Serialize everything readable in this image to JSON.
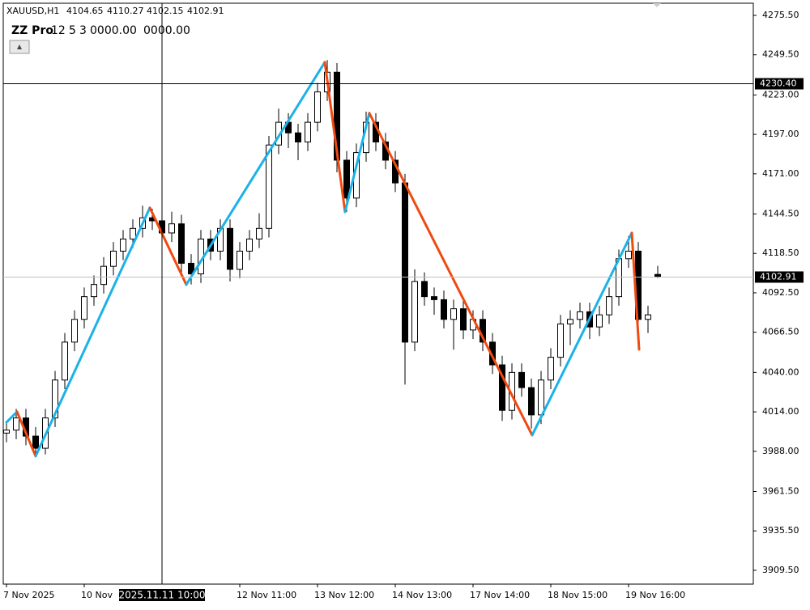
{
  "chart_data": {
    "type": "candlestick",
    "symbol": "XAUUSD,H1",
    "indicator": {
      "name": "ZZ Pro",
      "params": [
        12,
        5,
        3
      ],
      "up_label": "0000.00",
      "down_label": "0000.00"
    },
    "xlim": [
      -1,
      230.5
    ],
    "ylim": [
      3900.4,
      4283.5
    ],
    "yticks": [
      {
        "value": 4275.5,
        "label": "4275.50"
      },
      {
        "value": 4249.5,
        "label": "4249.50"
      },
      {
        "value": 4223,
        "label": "4223.00"
      },
      {
        "value": 4197,
        "label": "4197.00"
      },
      {
        "value": 4171,
        "label": "4171.00"
      },
      {
        "value": 4144.5,
        "label": "4144.50"
      },
      {
        "value": 4118.5,
        "label": "4118.50"
      },
      {
        "value": 4092.5,
        "label": "4092.50"
      },
      {
        "value": 4066.5,
        "label": "4066.50"
      },
      {
        "value": 4040,
        "label": "4040.00"
      },
      {
        "value": 4014,
        "label": "4014.00"
      },
      {
        "value": 3988,
        "label": "3988.00"
      },
      {
        "value": 3961.5,
        "label": "3961.50"
      },
      {
        "value": 3935.5,
        "label": "3935.50"
      },
      {
        "value": 3909.5,
        "label": "3909.50"
      }
    ],
    "xticks": [
      {
        "value": 0,
        "label": "7 Nov 2025"
      },
      {
        "value": 24,
        "label": "10 Nov"
      },
      {
        "value": 72,
        "label": "12 Nov 11:00"
      },
      {
        "value": 96,
        "label": "13 Nov 12:00"
      },
      {
        "value": 120,
        "label": "14 Nov 13:00"
      },
      {
        "value": 144,
        "label": "17 Nov 14:00"
      },
      {
        "value": 168,
        "label": "18 Nov 15:00"
      },
      {
        "value": 192,
        "label": "19 Nov 16:00"
      }
    ],
    "crosshair": {
      "x": 48,
      "time_label": "2025.11.11 10:00",
      "price": {
        "value": 4230.4,
        "label": "4230.40"
      }
    },
    "up_candle_color": "#ffffff",
    "down_candle_color": "#000000",
    "candles": {
      "x": [
        0,
        3,
        6,
        9,
        12,
        15,
        18,
        21,
        24,
        27,
        30,
        33,
        36,
        39,
        42,
        45,
        48,
        51,
        54,
        57,
        60,
        63,
        66,
        69,
        72,
        75,
        78,
        81,
        84,
        87,
        90,
        93,
        96,
        99,
        102,
        105,
        108,
        111,
        114,
        117,
        120,
        123,
        126,
        129,
        132,
        135,
        138,
        141,
        144,
        147,
        150,
        153,
        156,
        159,
        162,
        165,
        168,
        171,
        174,
        177,
        180,
        183,
        186,
        189,
        192,
        195,
        198,
        201
      ],
      "open": [
        4000,
        4002,
        4010,
        3998,
        3990,
        4010,
        4035,
        4060,
        4075,
        4090,
        4098,
        4110,
        4120,
        4128,
        4135,
        4142,
        4140,
        4132,
        4138,
        4112,
        4105,
        4128,
        4120,
        4135,
        4108,
        4120,
        4128,
        4135,
        4190,
        4205,
        4198,
        4192,
        4205,
        4225,
        4238,
        4180,
        4155,
        4185,
        4205,
        4192,
        4180,
        4165,
        4060,
        4100,
        4090,
        4088,
        4075,
        4082,
        4068,
        4075,
        4060,
        4045,
        4015,
        4040,
        4030,
        4012,
        4035,
        4050,
        4072,
        4075,
        4080,
        4070,
        4078,
        4090,
        4115,
        4120,
        4075,
        4104.65
      ],
      "high": [
        4008,
        4016,
        4016,
        4004,
        4016,
        4041,
        4066,
        4081,
        4096,
        4104,
        4116,
        4126,
        4134,
        4141,
        4150,
        4148,
        4146,
        4146,
        4144,
        4118,
        4134,
        4134,
        4141,
        4141,
        4126,
        4134,
        4145,
        4196,
        4214,
        4211,
        4204,
        4211,
        4231,
        4246,
        4244,
        4186,
        4191,
        4212,
        4211,
        4198,
        4186,
        4171,
        4108,
        4106,
        4096,
        4094,
        4088,
        4088,
        4081,
        4081,
        4066,
        4051,
        4046,
        4046,
        4036,
        4041,
        4056,
        4078,
        4081,
        4086,
        4086,
        4084,
        4096,
        4121,
        4130,
        4126,
        4084,
        4110.27
      ],
      "low": [
        3994,
        3996,
        3992,
        3984,
        3986,
        4004,
        4029,
        4054,
        4069,
        4084,
        4092,
        4104,
        4114,
        4122,
        4129,
        4134,
        4126,
        4126,
        4104,
        4098,
        4099,
        4114,
        4114,
        4100,
        4102,
        4114,
        4122,
        4129,
        4184,
        4188,
        4180,
        4186,
        4199,
        4219,
        4172,
        4146,
        4149,
        4179,
        4186,
        4174,
        4159,
        4032,
        4054,
        4084,
        4078,
        4069,
        4055,
        4062,
        4062,
        4054,
        4039,
        4008,
        4009,
        4024,
        4003,
        4006,
        4029,
        4044,
        4058,
        4069,
        4062,
        4064,
        4072,
        4084,
        4109,
        4060,
        4066,
        4102.15
      ],
      "close": [
        4002,
        4010,
        3998,
        3990,
        4010,
        4035,
        4060,
        4075,
        4090,
        4098,
        4110,
        4120,
        4128,
        4135,
        4142,
        4140,
        4132,
        4138,
        4112,
        4105,
        4128,
        4120,
        4135,
        4108,
        4120,
        4128,
        4135,
        4190,
        4205,
        4198,
        4192,
        4205,
        4225,
        4238,
        4180,
        4155,
        4185,
        4205,
        4192,
        4180,
        4165,
        4060,
        4100,
        4090,
        4088,
        4075,
        4082,
        4068,
        4075,
        4060,
        4045,
        4015,
        4040,
        4030,
        4012,
        4035,
        4050,
        4072,
        4075,
        4080,
        4070,
        4078,
        4090,
        4115,
        4120,
        4075,
        4078,
        4102.91
      ]
    },
    "zigzag": {
      "up_color": "#1ab2e8",
      "down_color": "#f04a10",
      "x": [
        0,
        3.25,
        9,
        44.25,
        55.5,
        98.25,
        104.5,
        112,
        162.25,
        193,
        195.25
      ],
      "y": [
        4007.1,
        4014.1,
        3984.8,
        4148.6,
        4097.9,
        4244.6,
        4145.9,
        4211.0,
        3998.6,
        4132.0,
        4055.2
      ]
    }
  }
}
